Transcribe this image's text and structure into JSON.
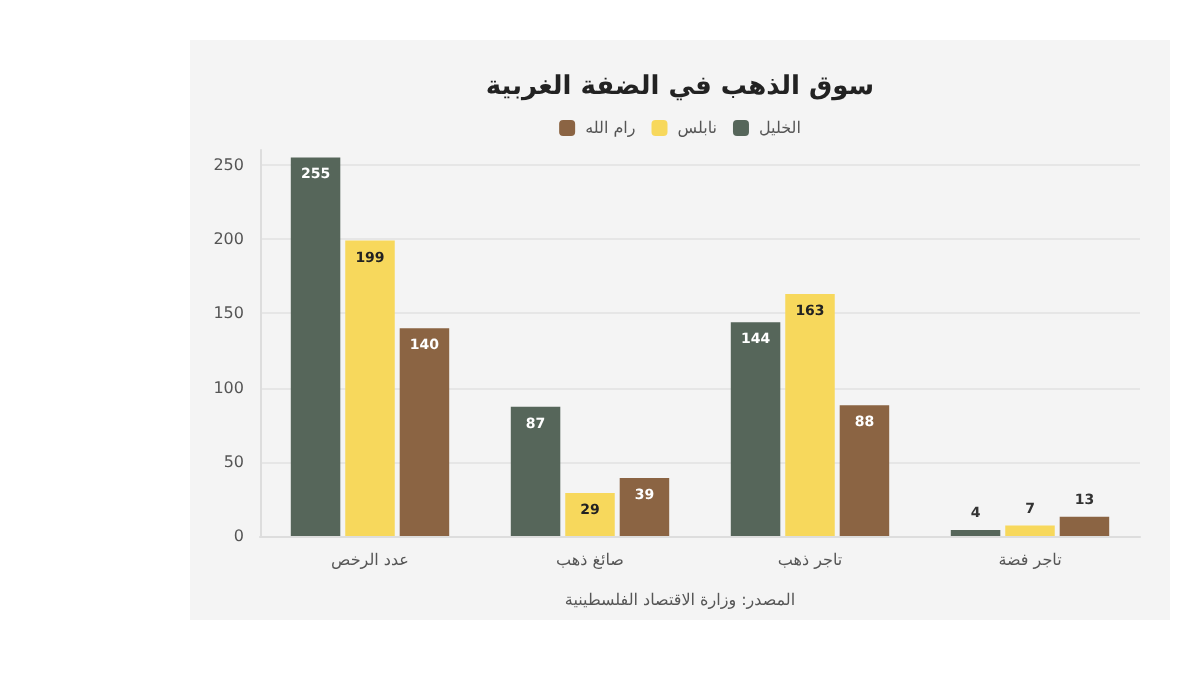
{
  "chart_data": {
    "type": "bar",
    "title": "سوق الذهب في الضفة الغربية",
    "categories": [
      "عدد الرخص",
      "صائغ ذهب",
      "تاجر ذهب",
      "تاجر فضة"
    ],
    "series": [
      {
        "name": "الخليل",
        "color": "#56665a",
        "values": [
          255,
          87,
          144,
          4
        ]
      },
      {
        "name": "نابلس",
        "color": "#f7d85c",
        "values": [
          199,
          29,
          163,
          7
        ]
      },
      {
        "name": "رام الله",
        "color": "#8b6443",
        "values": [
          140,
          39,
          88,
          13
        ]
      }
    ],
    "ylim": [
      0,
      260
    ],
    "yticks": [
      0,
      50,
      100,
      150,
      200,
      250
    ],
    "grid": "y",
    "legend": "top",
    "data_labels": true,
    "annotations": [
      "المصدر: وزارة الاقتصاد الفلسطينية"
    ]
  }
}
